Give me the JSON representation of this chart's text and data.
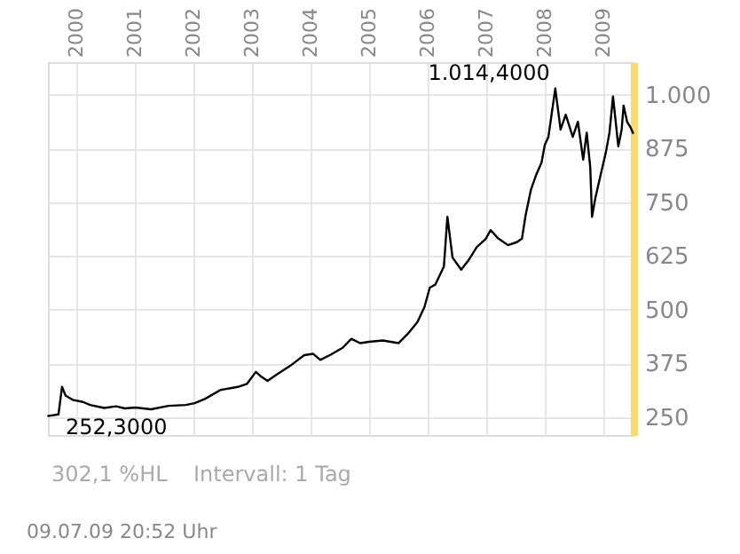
{
  "chart_data": {
    "type": "line",
    "x": [
      "1999-07-09",
      "1999-09-13",
      "1999-10-05",
      "1999-10-27",
      "1999-12-10",
      "2000-02-13",
      "2000-03-28",
      "2000-06-24",
      "2000-09-06",
      "2000-10-31",
      "2001-01-04",
      "2001-04-12",
      "2001-07-30",
      "2001-11-15",
      "2002-01-09",
      "2002-03-14",
      "2002-06-19",
      "2002-10-06",
      "2002-12-01",
      "2003-01-26",
      "2003-02-25",
      "2003-04-09",
      "2003-06-02",
      "2003-08-28",
      "2003-11-24",
      "2004-01-19",
      "2004-03-03",
      "2004-05-07",
      "2004-07-20",
      "2004-09-13",
      "2004-11-06",
      "2005-01-01",
      "2005-03-28",
      "2005-07-05",
      "2005-09-06",
      "2005-10-30",
      "2005-12-13",
      "2006-01-15",
      "2006-02-18",
      "2006-04-13",
      "2006-05-05",
      "2006-06-06",
      "2006-07-30",
      "2006-09-12",
      "2006-11-05",
      "2006-12-29",
      "2007-01-30",
      "2007-03-14",
      "2007-05-18",
      "2007-07-12",
      "2007-08-13",
      "2007-09-05",
      "2007-10-08",
      "2007-11-10",
      "2007-12-13",
      "2008-01-03",
      "2008-01-25",
      "2008-02-26",
      "2008-03-08",
      "2008-04-10",
      "2008-05-12",
      "2008-06-25",
      "2008-07-27",
      "2008-08-29",
      "2008-09-20",
      "2008-10-12",
      "2008-10-23",
      "2008-11-13",
      "2008-12-16",
      "2009-01-18",
      "2009-02-09",
      "2009-03-03",
      "2009-03-25",
      "2009-04-05",
      "2009-04-26",
      "2009-05-08",
      "2009-05-30",
      "2009-06-19",
      "2009-07-08"
    ],
    "series": [
      {
        "color": "#000000",
        "values": [
          252.3,
          256,
          320,
          300,
          290,
          285,
          278,
          271,
          275,
          270,
          272,
          268,
          276,
          278,
          282,
          292,
          313,
          320,
          327,
          355,
          345,
          334,
          348,
          369,
          394,
          397,
          383,
          395,
          411,
          432,
          422,
          425,
          428,
          422,
          446,
          471,
          506,
          551,
          558,
          600,
          716,
          621,
          593,
          614,
          646,
          664,
          685,
          667,
          650,
          657,
          665,
          720,
          779,
          814,
          842,
          884,
          902,
          986,
          1014.4,
          919,
          954,
          902,
          937,
          849,
          912,
          832,
          716,
          760,
          814,
          867,
          912,
          996,
          919,
          880,
          919,
          975,
          937,
          925,
          909
        ]
      }
    ],
    "xlim": [
      "1999-07-09",
      "2009-07-09"
    ],
    "xticks": [
      "2000",
      "2001",
      "2002",
      "2003",
      "2004",
      "2005",
      "2006",
      "2007",
      "2008",
      "2009"
    ],
    "ylim": [
      208,
      1076
    ],
    "yticks": [
      250,
      375,
      500,
      625,
      750,
      875,
      {
        "value": 1000,
        "label": "1.000"
      }
    ],
    "grid": true,
    "marker": "none",
    "line_style": "solid",
    "annotations": [
      {
        "text": "1.014,4000",
        "x": "2008-03-08",
        "y": 1014.4
      },
      {
        "text": "252,3000",
        "x": "1999-07-09",
        "y": 252.3
      },
      "302,1 %HL",
      "Intervall: 1 Tag",
      "09.07.09  20:52 Uhr"
    ]
  }
}
